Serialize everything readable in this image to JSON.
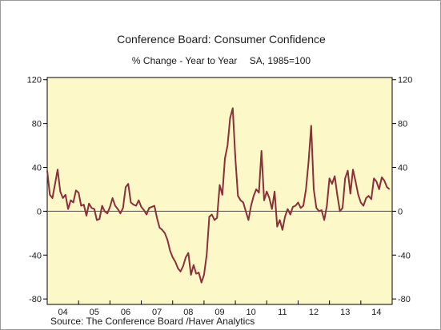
{
  "title": "Conference Board: Consumer Confidence",
  "subtitle_left": "% Change - Year to Year",
  "subtitle_right": "SA, 1985=100",
  "source": "Source:  The Conference Board /Haver Analytics",
  "colors": {
    "plot_background": "#fcf8c8",
    "series": "#8b2f3b",
    "zero_line": "#555555",
    "axis": "#000000"
  },
  "chart_data": {
    "type": "line",
    "title": "Conference Board: Consumer Confidence",
    "subtitle": "% Change - Year to Year    SA, 1985=100",
    "xlabel": "",
    "ylabel": "",
    "xlim": [
      2004.0,
      2015.0
    ],
    "ylim": [
      -85,
      122
    ],
    "yticks": [
      -80,
      -40,
      0,
      40,
      80,
      120
    ],
    "ytick_labels": [
      "-80",
      "-40",
      "0",
      "40",
      "80",
      "120"
    ],
    "xticks": [
      2004.5,
      2005.5,
      2006.5,
      2007.5,
      2008.5,
      2009.5,
      2010.5,
      2011.5,
      2012.5,
      2013.5,
      2014.5
    ],
    "xtick_labels": [
      "04",
      "05",
      "06",
      "07",
      "08",
      "09",
      "10",
      "11",
      "12",
      "13",
      "14"
    ],
    "grid": false,
    "legend": "none",
    "series": [
      {
        "x": [
          2004.0,
          2004.083,
          2004.167,
          2004.25,
          2004.333,
          2004.417,
          2004.5,
          2004.583,
          2004.667,
          2004.75,
          2004.833,
          2004.917,
          2005.0,
          2005.083,
          2005.167,
          2005.25,
          2005.333,
          2005.417,
          2005.5,
          2005.583,
          2005.667,
          2005.75,
          2005.833,
          2005.917,
          2006.0,
          2006.083,
          2006.167,
          2006.25,
          2006.333,
          2006.417,
          2006.5,
          2006.583,
          2006.667,
          2006.75,
          2006.833,
          2006.917,
          2007.0,
          2007.083,
          2007.167,
          2007.25,
          2007.333,
          2007.417,
          2007.5,
          2007.583,
          2007.667,
          2007.75,
          2007.833,
          2007.917,
          2008.0,
          2008.083,
          2008.167,
          2008.25,
          2008.333,
          2008.417,
          2008.5,
          2008.583,
          2008.667,
          2008.75,
          2008.833,
          2008.917,
          2009.0,
          2009.083,
          2009.167,
          2009.25,
          2009.333,
          2009.417,
          2009.5,
          2009.583,
          2009.667,
          2009.75,
          2009.833,
          2009.917,
          2010.0,
          2010.083,
          2010.167,
          2010.25,
          2010.333,
          2010.417,
          2010.5,
          2010.583,
          2010.667,
          2010.75,
          2010.833,
          2010.917,
          2011.0,
          2011.083,
          2011.167,
          2011.25,
          2011.333,
          2011.417,
          2011.5,
          2011.583,
          2011.667,
          2011.75,
          2011.833,
          2011.917,
          2012.0,
          2012.083,
          2012.167,
          2012.25,
          2012.333,
          2012.417,
          2012.5,
          2012.583,
          2012.667,
          2012.75,
          2012.833,
          2012.917,
          2013.0,
          2013.083,
          2013.167,
          2013.25,
          2013.333,
          2013.417,
          2013.5,
          2013.583,
          2013.667,
          2013.75,
          2013.833,
          2013.917,
          2014.0,
          2014.083,
          2014.167,
          2014.25,
          2014.333,
          2014.417,
          2014.5,
          2014.583,
          2014.667,
          2014.75,
          2014.833,
          2014.917
        ],
        "values": [
          37,
          15,
          12,
          25,
          38,
          18,
          12,
          15,
          2,
          10,
          8,
          19,
          17,
          5,
          6,
          -4,
          7,
          3,
          2,
          -8,
          -7,
          5,
          0,
          -2,
          4,
          12,
          5,
          2,
          -2,
          3,
          22,
          25,
          8,
          6,
          5,
          10,
          4,
          1,
          -3,
          3,
          4,
          5,
          -6,
          -15,
          -17,
          -20,
          -26,
          -36,
          -42,
          -46,
          -52,
          -55,
          -50,
          -42,
          -38,
          -58,
          -49,
          -57,
          -56,
          -65,
          -58,
          -40,
          -5,
          -3,
          -8,
          -6,
          24,
          15,
          48,
          60,
          85,
          94,
          48,
          14,
          10,
          8,
          0,
          -8,
          5,
          14,
          20,
          17,
          55,
          10,
          18,
          12,
          2,
          18,
          -14,
          -8,
          -17,
          -5,
          2,
          -3,
          4,
          5,
          8,
          3,
          5,
          20,
          45,
          78,
          20,
          3,
          0,
          1,
          -8,
          5,
          30,
          25,
          32,
          15,
          0,
          3,
          30,
          37,
          16,
          38,
          27,
          15,
          8,
          5,
          12,
          14,
          11,
          30,
          27,
          20,
          31,
          28,
          22,
          20
        ]
      }
    ]
  }
}
